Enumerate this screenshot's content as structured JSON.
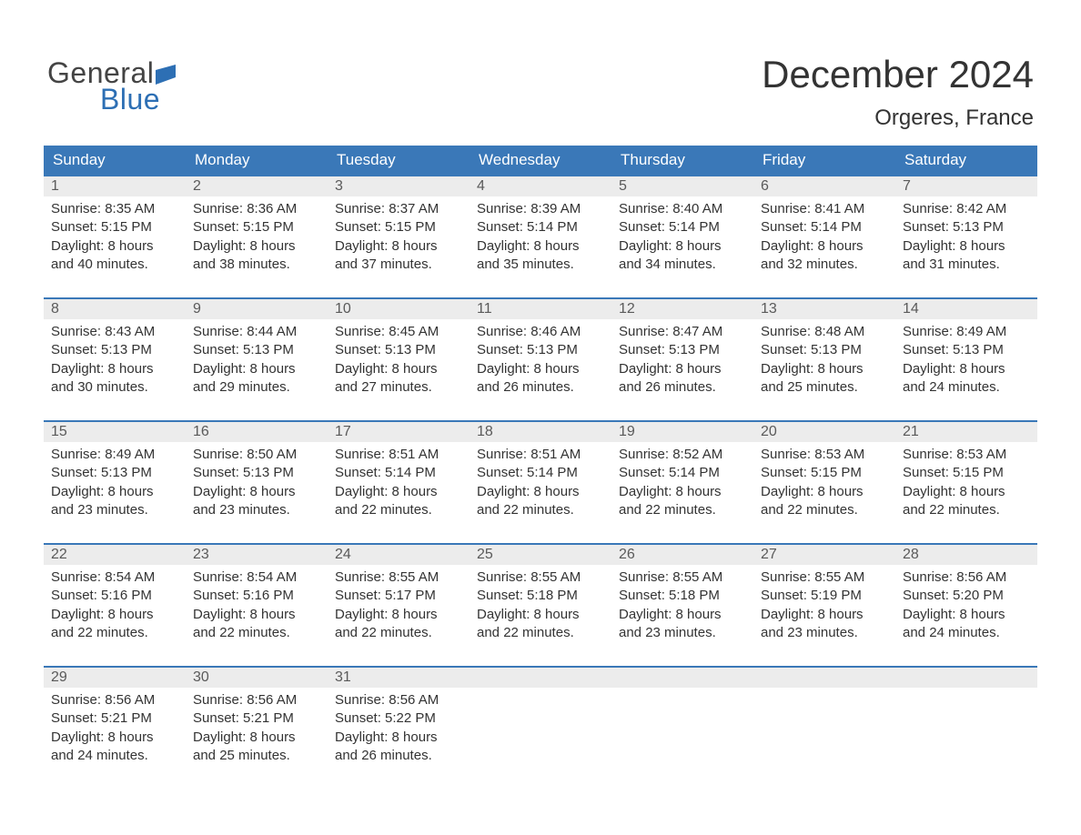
{
  "logo": {
    "word1": "General",
    "word2": "Blue"
  },
  "title": "December 2024",
  "location": "Orgeres, France",
  "colors": {
    "header_bg": "#3a78b8",
    "header_text": "#ffffff",
    "week_border": "#3a78b8",
    "daynum_bg": "#ececec",
    "daynum_text": "#5a5a5a",
    "body_text": "#333333",
    "logo_gray": "#444444",
    "logo_blue": "#2d6fb4",
    "page_bg": "#ffffff"
  },
  "day_names": [
    "Sunday",
    "Monday",
    "Tuesday",
    "Wednesday",
    "Thursday",
    "Friday",
    "Saturday"
  ],
  "weeks": [
    [
      {
        "n": "1",
        "sr": "8:35 AM",
        "ss": "5:15 PM",
        "dh": "8",
        "dm": "40"
      },
      {
        "n": "2",
        "sr": "8:36 AM",
        "ss": "5:15 PM",
        "dh": "8",
        "dm": "38"
      },
      {
        "n": "3",
        "sr": "8:37 AM",
        "ss": "5:15 PM",
        "dh": "8",
        "dm": "37"
      },
      {
        "n": "4",
        "sr": "8:39 AM",
        "ss": "5:14 PM",
        "dh": "8",
        "dm": "35"
      },
      {
        "n": "5",
        "sr": "8:40 AM",
        "ss": "5:14 PM",
        "dh": "8",
        "dm": "34"
      },
      {
        "n": "6",
        "sr": "8:41 AM",
        "ss": "5:14 PM",
        "dh": "8",
        "dm": "32"
      },
      {
        "n": "7",
        "sr": "8:42 AM",
        "ss": "5:13 PM",
        "dh": "8",
        "dm": "31"
      }
    ],
    [
      {
        "n": "8",
        "sr": "8:43 AM",
        "ss": "5:13 PM",
        "dh": "8",
        "dm": "30"
      },
      {
        "n": "9",
        "sr": "8:44 AM",
        "ss": "5:13 PM",
        "dh": "8",
        "dm": "29"
      },
      {
        "n": "10",
        "sr": "8:45 AM",
        "ss": "5:13 PM",
        "dh": "8",
        "dm": "27"
      },
      {
        "n": "11",
        "sr": "8:46 AM",
        "ss": "5:13 PM",
        "dh": "8",
        "dm": "26"
      },
      {
        "n": "12",
        "sr": "8:47 AM",
        "ss": "5:13 PM",
        "dh": "8",
        "dm": "26"
      },
      {
        "n": "13",
        "sr": "8:48 AM",
        "ss": "5:13 PM",
        "dh": "8",
        "dm": "25"
      },
      {
        "n": "14",
        "sr": "8:49 AM",
        "ss": "5:13 PM",
        "dh": "8",
        "dm": "24"
      }
    ],
    [
      {
        "n": "15",
        "sr": "8:49 AM",
        "ss": "5:13 PM",
        "dh": "8",
        "dm": "23"
      },
      {
        "n": "16",
        "sr": "8:50 AM",
        "ss": "5:13 PM",
        "dh": "8",
        "dm": "23"
      },
      {
        "n": "17",
        "sr": "8:51 AM",
        "ss": "5:14 PM",
        "dh": "8",
        "dm": "22"
      },
      {
        "n": "18",
        "sr": "8:51 AM",
        "ss": "5:14 PM",
        "dh": "8",
        "dm": "22"
      },
      {
        "n": "19",
        "sr": "8:52 AM",
        "ss": "5:14 PM",
        "dh": "8",
        "dm": "22"
      },
      {
        "n": "20",
        "sr": "8:53 AM",
        "ss": "5:15 PM",
        "dh": "8",
        "dm": "22"
      },
      {
        "n": "21",
        "sr": "8:53 AM",
        "ss": "5:15 PM",
        "dh": "8",
        "dm": "22"
      }
    ],
    [
      {
        "n": "22",
        "sr": "8:54 AM",
        "ss": "5:16 PM",
        "dh": "8",
        "dm": "22"
      },
      {
        "n": "23",
        "sr": "8:54 AM",
        "ss": "5:16 PM",
        "dh": "8",
        "dm": "22"
      },
      {
        "n": "24",
        "sr": "8:55 AM",
        "ss": "5:17 PM",
        "dh": "8",
        "dm": "22"
      },
      {
        "n": "25",
        "sr": "8:55 AM",
        "ss": "5:18 PM",
        "dh": "8",
        "dm": "22"
      },
      {
        "n": "26",
        "sr": "8:55 AM",
        "ss": "5:18 PM",
        "dh": "8",
        "dm": "23"
      },
      {
        "n": "27",
        "sr": "8:55 AM",
        "ss": "5:19 PM",
        "dh": "8",
        "dm": "23"
      },
      {
        "n": "28",
        "sr": "8:56 AM",
        "ss": "5:20 PM",
        "dh": "8",
        "dm": "24"
      }
    ],
    [
      {
        "n": "29",
        "sr": "8:56 AM",
        "ss": "5:21 PM",
        "dh": "8",
        "dm": "24"
      },
      {
        "n": "30",
        "sr": "8:56 AM",
        "ss": "5:21 PM",
        "dh": "8",
        "dm": "25"
      },
      {
        "n": "31",
        "sr": "8:56 AM",
        "ss": "5:22 PM",
        "dh": "8",
        "dm": "26"
      },
      null,
      null,
      null,
      null
    ]
  ],
  "labels": {
    "sunrise": "Sunrise:",
    "sunset": "Sunset:",
    "daylight": "Daylight:",
    "hours": "hours",
    "and": "and",
    "minutes": "minutes."
  }
}
